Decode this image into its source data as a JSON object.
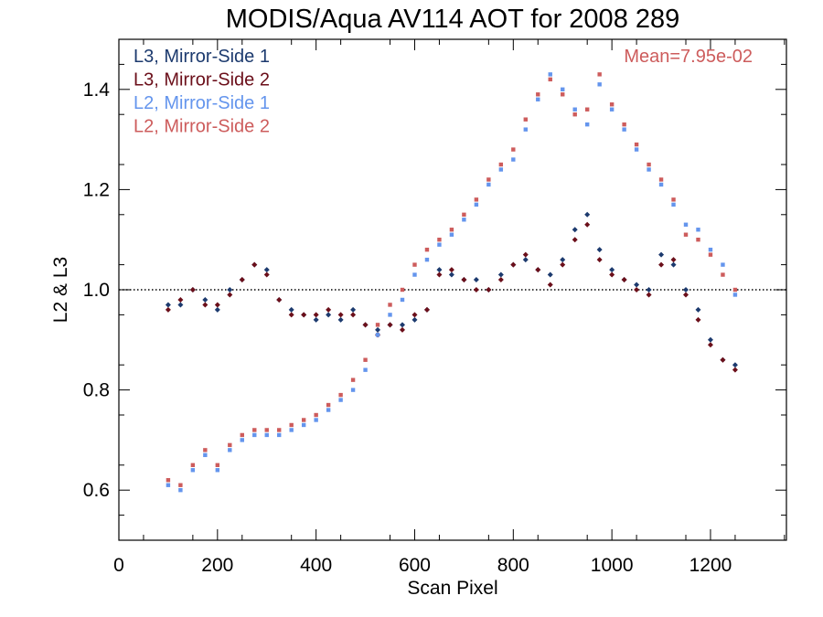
{
  "chart_data": {
    "type": "scatter",
    "title": "MODIS/Aqua AV114 AOT for 2008 289",
    "xlabel": "Scan Pixel",
    "ylabel": "L2 & L3",
    "xlim": [
      0,
      1354
    ],
    "ylim": [
      0.5,
      1.5
    ],
    "x_ticks": [
      0,
      200,
      400,
      600,
      800,
      1000,
      1200
    ],
    "x_tick_labels": [
      "0",
      "200",
      "400",
      "600",
      "800",
      "1000",
      "1200"
    ],
    "y_ticks": [
      0.6,
      0.8,
      1.0,
      1.2,
      1.4
    ],
    "y_tick_labels": [
      "0.6",
      "0.8",
      "1.0",
      "1.2",
      "1.4"
    ],
    "reference_line": {
      "y": 1.0,
      "style": "dotted"
    },
    "annotation": {
      "text": "Mean=7.95e-02",
      "color": "#cd5c5c"
    },
    "legend_position": "top-left",
    "series": [
      {
        "name": "L3, Mirror-Side 1",
        "color": "#1c3a6e",
        "marker": "diamond",
        "x": [
          100,
          125,
          150,
          175,
          200,
          225,
          250,
          275,
          300,
          325,
          350,
          375,
          400,
          425,
          450,
          475,
          500,
          525,
          550,
          575,
          600,
          625,
          650,
          675,
          700,
          725,
          750,
          775,
          800,
          825,
          850,
          875,
          900,
          925,
          950,
          975,
          1000,
          1025,
          1050,
          1075,
          1100,
          1125,
          1150,
          1175,
          1200,
          1225,
          1250
        ],
        "y": [
          0.97,
          0.97,
          1.0,
          0.98,
          0.96,
          1.0,
          1.02,
          1.05,
          1.04,
          0.98,
          0.96,
          0.95,
          0.94,
          0.95,
          0.94,
          0.96,
          0.93,
          0.92,
          0.93,
          0.93,
          0.94,
          0.96,
          1.04,
          1.03,
          1.02,
          1.02,
          1.0,
          1.03,
          1.05,
          1.06,
          1.04,
          1.03,
          1.06,
          1.12,
          1.15,
          1.08,
          1.04,
          1.02,
          1.01,
          1.0,
          1.07,
          1.05,
          1.0,
          0.96,
          0.9,
          0.86,
          0.85
        ]
      },
      {
        "name": "L3, Mirror-Side 2",
        "color": "#6b0f1a",
        "marker": "diamond",
        "x": [
          100,
          125,
          150,
          175,
          200,
          225,
          250,
          275,
          300,
          325,
          350,
          375,
          400,
          425,
          450,
          475,
          500,
          525,
          550,
          575,
          600,
          625,
          650,
          675,
          700,
          725,
          750,
          775,
          800,
          825,
          850,
          875,
          900,
          925,
          950,
          975,
          1000,
          1025,
          1050,
          1075,
          1100,
          1125,
          1150,
          1175,
          1200,
          1225,
          1250
        ],
        "y": [
          0.96,
          0.98,
          1.0,
          0.97,
          0.97,
          0.99,
          1.02,
          1.05,
          1.03,
          0.98,
          0.95,
          0.95,
          0.95,
          0.96,
          0.95,
          0.95,
          0.93,
          0.91,
          0.93,
          0.92,
          0.95,
          0.96,
          1.03,
          1.04,
          1.02,
          1.0,
          1.0,
          1.02,
          1.05,
          1.07,
          1.04,
          1.01,
          1.05,
          1.1,
          1.13,
          1.06,
          1.03,
          1.02,
          1.0,
          0.99,
          1.05,
          1.06,
          0.99,
          0.94,
          0.89,
          0.86,
          0.84
        ]
      },
      {
        "name": "L2, Mirror-Side 1",
        "color": "#6495ed",
        "marker": "square",
        "x": [
          100,
          125,
          150,
          175,
          200,
          225,
          250,
          275,
          300,
          325,
          350,
          375,
          400,
          425,
          450,
          475,
          500,
          525,
          550,
          575,
          600,
          625,
          650,
          675,
          700,
          725,
          750,
          775,
          800,
          825,
          850,
          875,
          900,
          925,
          950,
          975,
          1000,
          1025,
          1050,
          1075,
          1100,
          1125,
          1150,
          1175,
          1200,
          1225,
          1250
        ],
        "y": [
          0.61,
          0.6,
          0.64,
          0.67,
          0.64,
          0.68,
          0.7,
          0.71,
          0.71,
          0.71,
          0.72,
          0.73,
          0.74,
          0.76,
          0.78,
          0.8,
          0.84,
          0.91,
          0.95,
          0.98,
          1.03,
          1.06,
          1.09,
          1.11,
          1.14,
          1.17,
          1.21,
          1.24,
          1.26,
          1.32,
          1.38,
          1.43,
          1.4,
          1.36,
          1.33,
          1.41,
          1.36,
          1.32,
          1.28,
          1.24,
          1.21,
          1.17,
          1.13,
          1.12,
          1.08,
          1.05,
          0.99
        ]
      },
      {
        "name": "L2, Mirror-Side 2",
        "color": "#cd5c5c",
        "marker": "square",
        "x": [
          100,
          125,
          150,
          175,
          200,
          225,
          250,
          275,
          300,
          325,
          350,
          375,
          400,
          425,
          450,
          475,
          500,
          525,
          550,
          575,
          600,
          625,
          650,
          675,
          700,
          725,
          750,
          775,
          800,
          825,
          850,
          875,
          900,
          925,
          950,
          975,
          1000,
          1025,
          1050,
          1075,
          1100,
          1125,
          1150,
          1175,
          1200,
          1225,
          1250
        ],
        "y": [
          0.62,
          0.61,
          0.65,
          0.68,
          0.65,
          0.69,
          0.71,
          0.72,
          0.72,
          0.72,
          0.73,
          0.74,
          0.75,
          0.77,
          0.79,
          0.82,
          0.86,
          0.93,
          0.97,
          1.0,
          1.05,
          1.08,
          1.1,
          1.12,
          1.15,
          1.18,
          1.22,
          1.25,
          1.28,
          1.34,
          1.39,
          1.42,
          1.39,
          1.35,
          1.36,
          1.43,
          1.37,
          1.33,
          1.29,
          1.25,
          1.22,
          1.18,
          1.11,
          1.1,
          1.07,
          1.03,
          1.0
        ]
      }
    ]
  }
}
